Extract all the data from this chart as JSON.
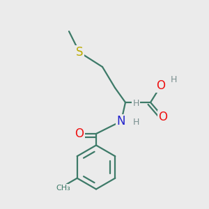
{
  "bg_color": "#ebebeb",
  "bond_color": "#3d7a68",
  "bond_width": 1.6,
  "colors": {
    "C": "#3d7a68",
    "H": "#7a9090",
    "O": "#ee1111",
    "N": "#2222cc",
    "S": "#bbaa00"
  },
  "fs_large": 11,
  "fs_small": 9
}
